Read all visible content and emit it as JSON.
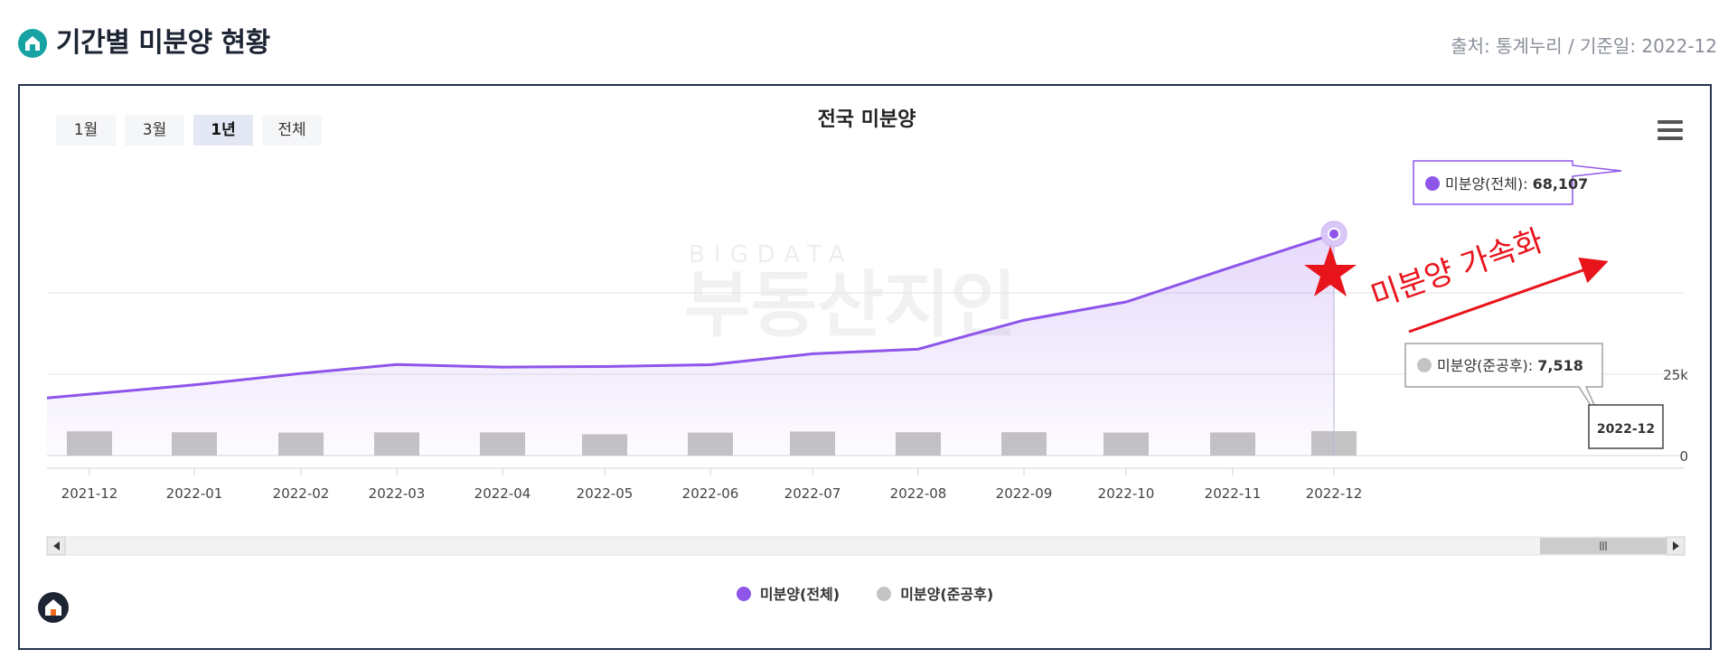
{
  "header": {
    "title": "기간별 미분양 현황",
    "source": "출처: 통계누리 / 기준일: 2022-12"
  },
  "controls": {
    "range_buttons": [
      {
        "label": "1월",
        "active": false
      },
      {
        "label": "3월",
        "active": false
      },
      {
        "label": "1년",
        "active": true
      },
      {
        "label": "전체",
        "active": false
      }
    ]
  },
  "colors": {
    "line": "#8e55ea",
    "bar": "#c4c4c4",
    "accent_red": "#e8141c",
    "brand": "#17a2a3"
  },
  "chart_data": {
    "type": "line",
    "title": "전국 미분양",
    "categories": [
      "2021-12",
      "2022-01",
      "2022-02",
      "2022-03",
      "2022-04",
      "2022-05",
      "2022-06",
      "2022-07",
      "2022-08",
      "2022-09",
      "2022-10",
      "2022-11",
      "2022-12"
    ],
    "series": [
      {
        "name": "미분양(전체)",
        "kind": "line",
        "values": [
          17710,
          21727,
          25254,
          27974,
          27180,
          27375,
          27910,
          31284,
          32722,
          41604,
          47217,
          58027,
          68107
        ]
      },
      {
        "name": "미분양(준공후)",
        "kind": "bar",
        "values": [
          7449,
          7165,
          7069,
          7130,
          7130,
          6537,
          7052,
          7388,
          7173,
          7189,
          7092,
          7110,
          7518
        ]
      }
    ],
    "y_ticks": [
      "0",
      "25k"
    ],
    "ylim": [
      0,
      70000
    ],
    "grid": true,
    "legend_position": "bottom",
    "tooltips": {
      "total": {
        "label": "미분양(전체): ",
        "value": "68,107"
      },
      "completed": {
        "label": "미분양(준공후): ",
        "value": "7,518"
      },
      "category": "2022-12"
    },
    "annotation": "미분양 가속화",
    "watermark": {
      "small": "BIGDATA",
      "large": "부동산지인"
    }
  }
}
